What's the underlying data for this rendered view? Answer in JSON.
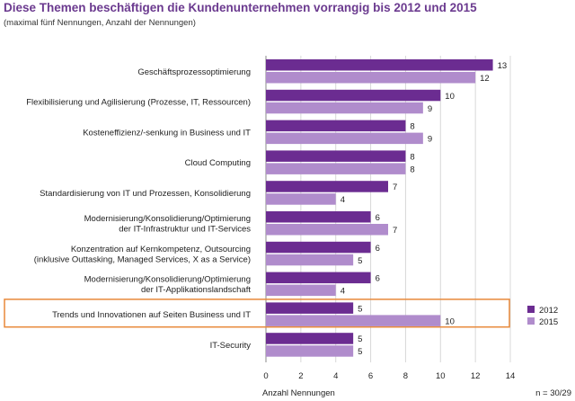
{
  "header": {
    "title": "Diese Themen beschäftigen die Kundenunternehmen vorrangig bis 2012 und 2015",
    "subtitle": "(maximal fünf Nennungen, Anzahl der Nennungen)"
  },
  "colors": {
    "series_2012": "#6b2c91",
    "series_2015": "#b08ccc",
    "highlight": "#e8893a",
    "grid": "#d8d8d8"
  },
  "footnote": "n = 30/29",
  "highlight_category_index": 8,
  "chart_data": {
    "type": "bar",
    "orientation": "horizontal",
    "categories": [
      [
        "Geschäftsprozessoptimierung"
      ],
      [
        "Flexibilisierung und Agilisierung (Prozesse, IT, Ressourcen)"
      ],
      [
        "Kosteneffizienz/-senkung in Business und IT"
      ],
      [
        "Cloud Computing"
      ],
      [
        "Standardisierung von IT und Prozessen, Konsolidierung"
      ],
      [
        "Modernisierung/Konsolidierung/Optimierung",
        "der IT-Infrastruktur und IT-Services"
      ],
      [
        "Konzentration auf Kernkompetenz, Outsourcing",
        "(inklusive Outtasking, Managed Services, X as a Service)"
      ],
      [
        "Modernisierung/Konsolidierung/Optimierung",
        "der IT-Applikationslandschaft"
      ],
      [
        "Trends und Innovationen auf Seiten Business und  IT"
      ],
      [
        "IT-Security"
      ]
    ],
    "series": [
      {
        "name": "2012",
        "values": [
          13,
          10,
          8,
          8,
          7,
          6,
          6,
          6,
          5,
          5
        ]
      },
      {
        "name": "2015",
        "values": [
          12,
          9,
          9,
          8,
          4,
          7,
          5,
          4,
          10,
          5
        ]
      }
    ],
    "xlabel": "Anzahl Nennungen",
    "xlim": [
      0,
      14
    ],
    "xticks": [
      0,
      2,
      4,
      6,
      8,
      10,
      12,
      14
    ],
    "grid": true,
    "legend_position": "bottom-right"
  }
}
